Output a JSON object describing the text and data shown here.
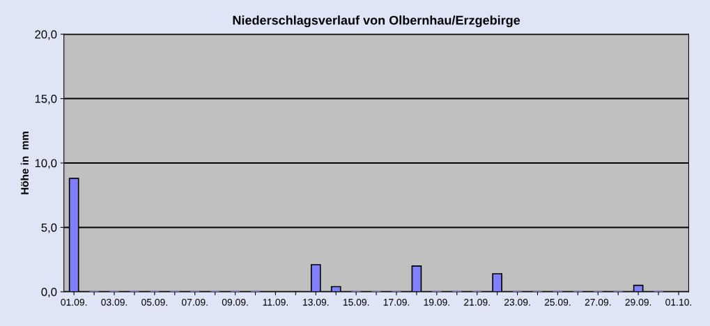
{
  "chart_data": {
    "type": "bar",
    "title": "Niederschlagsverlauf von Olbernhau/Erzgebirge",
    "ylabel": "Höhe in  mm",
    "categories": [
      "01.09.",
      null,
      "03.09.",
      null,
      "05.09.",
      null,
      "07.09.",
      null,
      "09.09.",
      null,
      "11.09.",
      null,
      "13.09.",
      null,
      "15.09.",
      null,
      "17.09.",
      null,
      "19.09.",
      null,
      "21.09.",
      null,
      "23.09.",
      null,
      "25.09.",
      null,
      "27.09.",
      null,
      "29.09.",
      null,
      "01.10."
    ],
    "values": [
      8.8,
      0,
      0,
      0,
      0,
      0,
      0,
      0,
      0,
      0,
      null,
      null,
      2.1,
      0.4,
      0,
      0,
      0,
      2.0,
      0,
      0,
      0,
      1.4,
      0,
      0,
      0,
      0,
      0,
      0,
      0.5,
      0,
      null
    ],
    "color": "#8080ff",
    "ylim": [
      0,
      20
    ],
    "yticks": [
      {
        "value": 0,
        "label": "0,0"
      },
      {
        "value": 5,
        "label": "5,0"
      },
      {
        "value": 10,
        "label": "10,0"
      },
      {
        "value": 15,
        "label": "15,0"
      },
      {
        "value": 20,
        "label": "20,0"
      }
    ],
    "grid": "y",
    "legend": false
  }
}
